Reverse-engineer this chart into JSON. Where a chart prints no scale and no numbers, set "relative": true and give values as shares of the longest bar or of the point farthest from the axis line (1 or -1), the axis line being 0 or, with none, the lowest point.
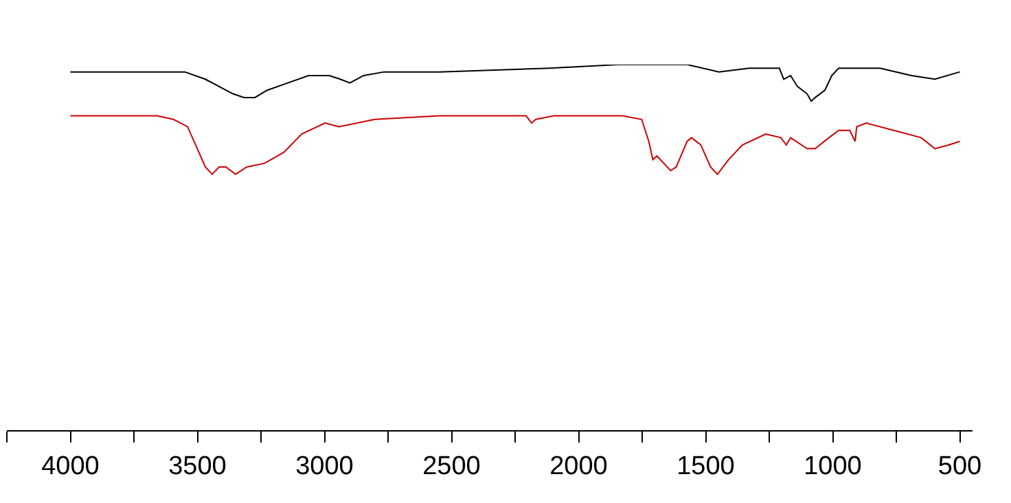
{
  "chart_data": {
    "type": "line",
    "relative": true,
    "grid": false,
    "tick_labels": "x",
    "marker": "none",
    "line_style": "solid",
    "xlim": [
      4250,
      450
    ],
    "xticks": [
      {
        "value": 4250,
        "label": null
      },
      4000,
      {
        "value": 3750,
        "label": null
      },
      3500,
      {
        "value": 3250,
        "label": null
      },
      3000,
      {
        "value": 2750,
        "label": null
      },
      2500,
      {
        "value": 2250,
        "label": null
      },
      2000,
      {
        "value": 1750,
        "label": null
      },
      1500,
      {
        "value": 1250,
        "label": null
      },
      1000,
      {
        "value": 750,
        "label": null
      },
      500
    ],
    "series": [
      {
        "color": "#000000",
        "x": [
          4000,
          3848,
          3686,
          3550,
          3469,
          3415,
          3360,
          3317,
          3274,
          3225,
          3144,
          3063,
          2981,
          2938,
          2900,
          2846,
          2765,
          2548,
          2115,
          1844,
          1573,
          1448,
          1329,
          1264,
          1210,
          1193,
          1166,
          1139,
          1101,
          1085,
          1069,
          1031,
          1004,
          977,
          906,
          814,
          690,
          598,
          500
        ],
        "values": [
          0.98,
          0.98,
          0.98,
          0.98,
          0.96,
          0.94,
          0.92,
          0.91,
          0.91,
          0.93,
          0.95,
          0.97,
          0.97,
          0.96,
          0.95,
          0.97,
          0.98,
          0.98,
          0.99,
          1.0,
          1.0,
          0.98,
          0.99,
          0.99,
          0.99,
          0.96,
          0.97,
          0.94,
          0.92,
          0.9,
          0.91,
          0.93,
          0.97,
          0.99,
          0.99,
          0.99,
          0.97,
          0.96,
          0.98
        ]
      },
      {
        "color": "#cc0000",
        "x": [
          4000,
          3740,
          3659,
          3594,
          3539,
          3507,
          3469,
          3442,
          3415,
          3388,
          3350,
          3306,
          3236,
          3160,
          3090,
          2998,
          2943,
          2803,
          2548,
          2207,
          2185,
          2169,
          2098,
          1827,
          1752,
          1724,
          1708,
          1692,
          1665,
          1638,
          1616,
          1573,
          1556,
          1519,
          1481,
          1454,
          1410,
          1356,
          1264,
          1204,
          1183,
          1166,
          1101,
          1069,
          1015,
          977,
          933,
          912,
          906,
          868,
          760,
          652,
          598,
          544,
          500
        ],
        "values": [
          0.86,
          0.86,
          0.86,
          0.85,
          0.83,
          0.78,
          0.72,
          0.7,
          0.72,
          0.72,
          0.7,
          0.72,
          0.73,
          0.76,
          0.81,
          0.84,
          0.83,
          0.85,
          0.86,
          0.86,
          0.84,
          0.85,
          0.86,
          0.86,
          0.85,
          0.79,
          0.74,
          0.75,
          0.73,
          0.71,
          0.72,
          0.79,
          0.8,
          0.78,
          0.72,
          0.7,
          0.74,
          0.78,
          0.81,
          0.8,
          0.78,
          0.8,
          0.77,
          0.77,
          0.8,
          0.82,
          0.82,
          0.79,
          0.83,
          0.84,
          0.82,
          0.8,
          0.77,
          0.78,
          0.79
        ]
      }
    ]
  }
}
